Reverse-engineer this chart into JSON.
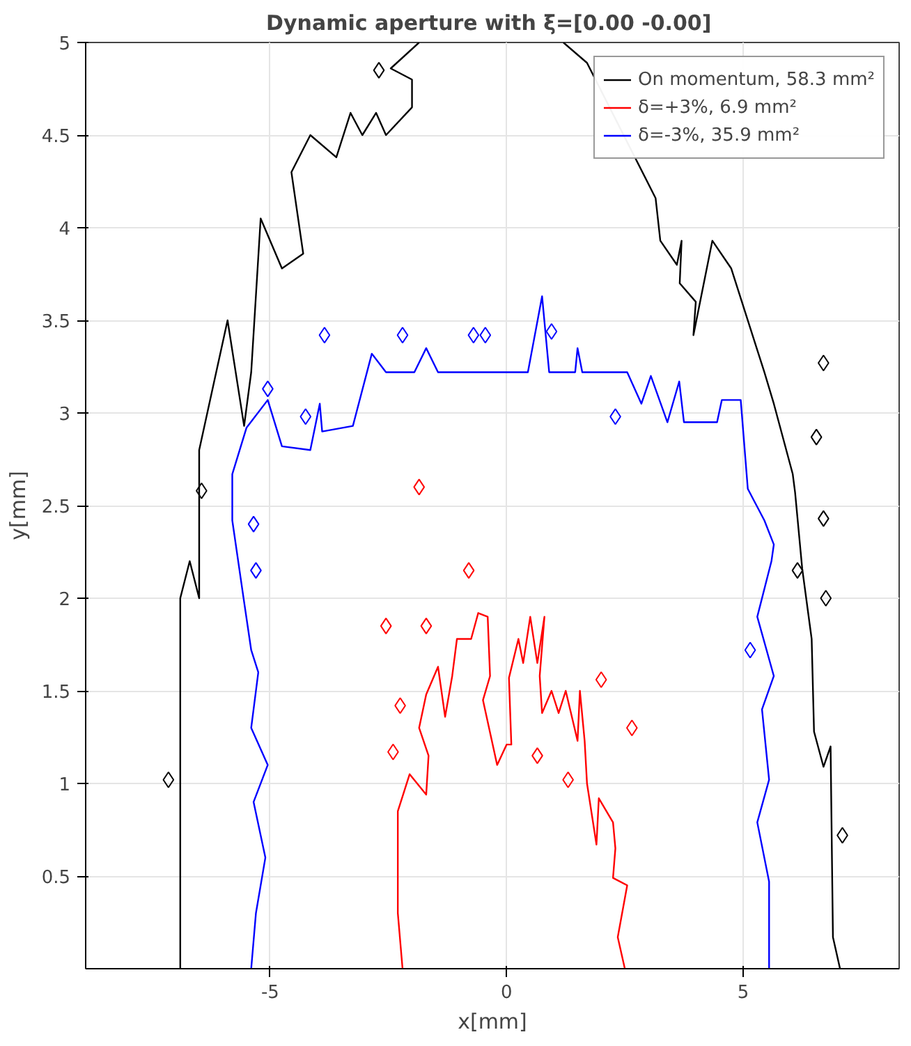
{
  "chart_data": {
    "type": "line",
    "title": "Dynamic aperture  with ξ=[0.00 -0.00]",
    "xlabel": "x[mm]",
    "ylabel": "y[mm]",
    "xlim": [
      -8.9,
      8.3
    ],
    "ylim": [
      0,
      5
    ],
    "xticks": [
      -5,
      0,
      5
    ],
    "yticks": [
      0.5,
      1,
      1.5,
      2,
      2.5,
      3,
      3.5,
      4,
      4.5,
      5
    ],
    "grid": true,
    "legend": "top right",
    "line_style": "solid",
    "series": [
      {
        "name": "On momentum, 58.3 mm²",
        "color": "#000000",
        "x": [
          -6.9,
          -6.9,
          -6.7,
          -6.5,
          -6.5,
          -6.2,
          -5.9,
          -5.55,
          -5.4,
          -5.2,
          -4.75,
          -4.3,
          -4.55,
          -4.15,
          -3.6,
          -3.3,
          -3.05,
          -2.76,
          -2.55,
          -2.0,
          -2.0,
          -2.45,
          -1.85,
          null,
          1.2,
          1.7,
          3.15,
          3.25,
          3.6,
          3.7,
          3.66,
          4.0,
          3.95,
          4.35,
          4.75,
          5.45,
          5.65,
          6.05,
          6.1,
          6.25,
          6.45,
          6.5,
          6.7,
          6.85,
          6.9,
          7.05
        ],
        "values": [
          0,
          2.0,
          2.2,
          2.0,
          2.8,
          3.15,
          3.5,
          2.93,
          3.22,
          4.05,
          3.78,
          3.86,
          4.3,
          4.5,
          4.38,
          4.62,
          4.5,
          4.62,
          4.5,
          4.65,
          4.8,
          4.86,
          5.0,
          null,
          5.0,
          4.89,
          4.16,
          3.93,
          3.8,
          3.93,
          3.7,
          3.6,
          3.42,
          3.93,
          3.78,
          3.22,
          3.05,
          2.67,
          2.57,
          2.16,
          1.78,
          1.28,
          1.09,
          1.2,
          0.17,
          0
        ]
      },
      {
        "name": "δ=+3%, 6.9 mm²",
        "color": "#ff0000",
        "x": [
          -2.2,
          -2.3,
          -2.3,
          -2.05,
          -1.7,
          -1.65,
          -1.85,
          -1.7,
          -1.45,
          -1.3,
          -1.15,
          -1.05,
          -0.75,
          -0.6,
          -0.4,
          -0.35,
          -0.5,
          -0.2,
          0.0,
          0.1,
          0.05,
          0.25,
          0.35,
          0.5,
          0.65,
          0.8,
          0.7,
          0.75,
          0.95,
          1.1,
          1.25,
          1.5,
          1.55,
          1.65,
          1.7,
          1.9,
          1.95,
          2.25,
          2.3,
          2.25,
          2.55,
          2.35,
          2.5
        ],
        "values": [
          0,
          0.3,
          0.85,
          1.05,
          0.94,
          1.15,
          1.3,
          1.48,
          1.63,
          1.36,
          1.58,
          1.78,
          1.78,
          1.92,
          1.9,
          1.58,
          1.45,
          1.1,
          1.21,
          1.21,
          1.57,
          1.78,
          1.65,
          1.9,
          1.65,
          1.9,
          1.58,
          1.38,
          1.5,
          1.38,
          1.5,
          1.23,
          1.5,
          1.23,
          1.0,
          0.67,
          0.92,
          0.79,
          0.65,
          0.49,
          0.45,
          0.17,
          0
        ]
      },
      {
        "name": "δ=-3%, 35.9 mm²",
        "color": "#0000ff",
        "x": [
          -5.4,
          -5.3,
          -5.1,
          -5.35,
          -5.05,
          -5.4,
          -5.25,
          -5.4,
          -5.55,
          -5.8,
          -5.8,
          -5.5,
          -5.05,
          -4.75,
          -4.15,
          -3.95,
          -3.9,
          -3.25,
          -2.85,
          -2.55,
          -1.95,
          -1.7,
          -1.45,
          0.45,
          0.75,
          0.9,
          1.45,
          1.5,
          1.6,
          2.55,
          2.85,
          3.05,
          3.4,
          3.65,
          3.75,
          4.45,
          4.55,
          4.95,
          5.1,
          5.45,
          5.65,
          5.6,
          5.3,
          5.65,
          5.4,
          5.55,
          5.3,
          5.55,
          5.55
        ],
        "values": [
          0,
          0.3,
          0.6,
          0.9,
          1.1,
          1.3,
          1.6,
          1.72,
          1.98,
          2.42,
          2.67,
          2.92,
          3.07,
          2.82,
          2.8,
          3.05,
          2.9,
          2.93,
          3.32,
          3.22,
          3.22,
          3.35,
          3.22,
          3.22,
          3.63,
          3.22,
          3.22,
          3.35,
          3.22,
          3.22,
          3.05,
          3.2,
          2.95,
          3.17,
          2.95,
          2.95,
          3.07,
          3.07,
          2.59,
          2.42,
          2.29,
          2.2,
          1.9,
          1.58,
          1.4,
          1.02,
          0.79,
          0.47,
          0
        ]
      },
      {
        "type": "scatter",
        "marker": "diamond",
        "color": "#000000",
        "x": [
          -7.15,
          -6.45,
          -2.7,
          6.7,
          6.55,
          6.7,
          6.15,
          6.75,
          7.1
        ],
        "values": [
          1.02,
          2.58,
          4.85,
          3.27,
          2.87,
          2.43,
          2.15,
          2.0,
          0.72
        ]
      },
      {
        "type": "scatter",
        "marker": "diamond",
        "color": "#ff0000",
        "x": [
          -1.85,
          -0.8,
          -2.55,
          -1.7,
          -2.25,
          -2.4,
          0.65,
          2.65,
          1.3,
          2.0
        ],
        "values": [
          2.6,
          2.15,
          1.85,
          1.85,
          1.42,
          1.17,
          1.15,
          1.3,
          1.02,
          1.56
        ]
      },
      {
        "type": "scatter",
        "marker": "diamond",
        "color": "#0000ff",
        "x": [
          -3.85,
          -2.2,
          -0.7,
          -0.45,
          0.95,
          2.3,
          -5.05,
          -4.25,
          -5.3,
          -5.35,
          5.15
        ],
        "values": [
          3.42,
          3.42,
          3.42,
          3.42,
          3.44,
          2.98,
          3.13,
          2.98,
          2.15,
          2.4,
          1.72
        ]
      }
    ]
  }
}
